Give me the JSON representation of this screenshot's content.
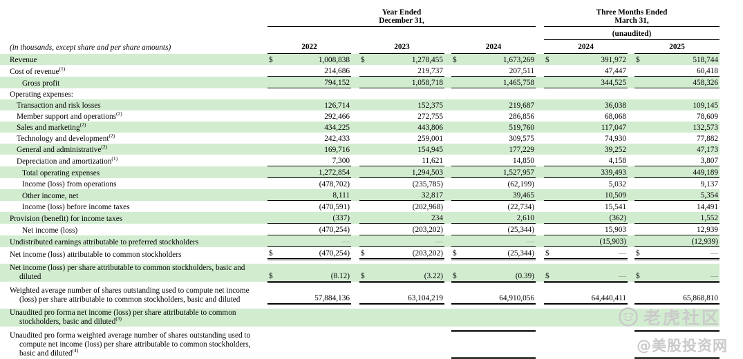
{
  "table": {
    "note": "(in thousands, except share and per share amounts)",
    "currency_symbol": "$",
    "header": {
      "annual_group": {
        "line1": "Year Ended",
        "line2": "December 31,"
      },
      "quarterly_group": {
        "line1": "Three Months Ended",
        "line2": "March 31,"
      },
      "unaudited_label": "(unaudited)",
      "year_columns": [
        "2022",
        "2023",
        "2024",
        "2024",
        "2025"
      ]
    },
    "colors": {
      "row_shade": "#d2ecd0",
      "rule": "#000000",
      "dash_gray": "#8a8a8a",
      "watermark_gray": "#c9c9c9"
    },
    "rows": [
      {
        "label": "Revenue",
        "indent": 0,
        "shaded": true,
        "dollar": true,
        "values": [
          "1,008,838",
          "1,278,455",
          "1,673,269",
          "391,972",
          "518,744"
        ]
      },
      {
        "label": "Cost of revenue",
        "sup": "(1)",
        "indent": 0,
        "shaded": false,
        "values": [
          "214,686",
          "219,737",
          "207,511",
          "47,447",
          "60,418"
        ],
        "rule": "single"
      },
      {
        "label": "Gross profit",
        "indent": 2,
        "shaded": true,
        "values": [
          "794,152",
          "1,058,718",
          "1,465,758",
          "344,525",
          "458,326"
        ],
        "rule": "single"
      },
      {
        "label": "Operating expenses:",
        "indent": 0,
        "shaded": false,
        "values": [
          "",
          "",
          "",
          "",
          ""
        ]
      },
      {
        "label": "Transaction and risk losses",
        "indent": 1,
        "shaded": true,
        "values": [
          "126,714",
          "152,375",
          "219,687",
          "36,038",
          "109,145"
        ]
      },
      {
        "label": "Member support and operations",
        "sup": "(2)",
        "indent": 1,
        "shaded": false,
        "values": [
          "292,466",
          "272,755",
          "286,856",
          "68,068",
          "78,609"
        ]
      },
      {
        "label": "Sales and marketing",
        "sup": "(2)",
        "indent": 1,
        "shaded": true,
        "values": [
          "434,225",
          "443,806",
          "519,760",
          "117,047",
          "132,573"
        ]
      },
      {
        "label": "Technology and development",
        "sup": "(2)",
        "indent": 1,
        "shaded": false,
        "values": [
          "242,433",
          "259,001",
          "309,575",
          "74,930",
          "77,882"
        ]
      },
      {
        "label": "General and administrative",
        "sup": "(2)",
        "indent": 1,
        "shaded": true,
        "values": [
          "169,716",
          "154,945",
          "177,229",
          "39,252",
          "47,173"
        ]
      },
      {
        "label": "Depreciation and amortization",
        "sup": "(1)",
        "indent": 1,
        "shaded": false,
        "values": [
          "7,300",
          "11,621",
          "14,850",
          "4,158",
          "3,807"
        ],
        "rule": "single"
      },
      {
        "label": "Total operating expenses",
        "indent": 2,
        "shaded": true,
        "values": [
          "1,272,854",
          "1,294,503",
          "1,527,957",
          "339,493",
          "449,189"
        ],
        "rule": "single"
      },
      {
        "label": "Income (loss) from operations",
        "indent": 2,
        "shaded": false,
        "values": [
          "(478,702)",
          "(235,785)",
          "(62,199)",
          "5,032",
          "9,137"
        ]
      },
      {
        "label": "Other income, net",
        "indent": 2,
        "shaded": true,
        "values": [
          "8,111",
          "32,817",
          "39,465",
          "10,509",
          "5,354"
        ],
        "rule": "single"
      },
      {
        "label": "Income (loss) before income taxes",
        "indent": 2,
        "shaded": false,
        "values": [
          "(470,591)",
          "(202,968)",
          "(22,734)",
          "15,541",
          "14,491"
        ]
      },
      {
        "label": "Provision (benefit) for income taxes",
        "indent": 0,
        "shaded": true,
        "values": [
          "(337)",
          "234",
          "2,610",
          "(362)",
          "1,552"
        ],
        "rule": "single"
      },
      {
        "label": "Net income (loss)",
        "indent": 2,
        "shaded": false,
        "values": [
          "(470,254)",
          "(203,202)",
          "(25,344)",
          "15,903",
          "12,939"
        ],
        "rule": "single"
      },
      {
        "label": "Undistributed earnings attributable to preferred stockholders",
        "indent": 0,
        "shaded": true,
        "values": [
          "—",
          "—",
          "—",
          "(15,903)",
          "(12,939)"
        ],
        "rule": "single"
      },
      {
        "label": "Net income (loss) attributable to common stockholders",
        "indent": 0,
        "shaded": false,
        "dollar": true,
        "values": [
          "(470,254)",
          "(203,202)",
          "(25,344)",
          "—",
          "—"
        ],
        "rule": "double",
        "spacer_after": true
      },
      {
        "label": "Net income (loss) per share attributable to common stockholders, basic and diluted",
        "indent": 0,
        "shaded": true,
        "dollar": true,
        "values": [
          "(8.12)",
          "(3.22)",
          "(0.39)",
          "—",
          "—"
        ],
        "rule": "double",
        "spacer_after": true
      },
      {
        "label": "Weighted average number of shares outstanding used to compute net income (loss) per share attributable to common stockholders, basic and diluted",
        "indent": 0,
        "shaded": false,
        "values": [
          "57,884,136",
          "63,104,219",
          "64,910,056",
          "64,440,411",
          "65,868,810"
        ],
        "rule": "double",
        "spacer_after": true
      },
      {
        "label": "Unaudited pro forma net income (loss) per share attributable to common stockholders, basic and diluted",
        "sup": "(3)",
        "indent": 0,
        "shaded": true,
        "values": [
          "",
          "",
          "",
          "",
          ""
        ],
        "rule_after": {
          "type": "double",
          "cols": [
            2,
            4
          ]
        }
      },
      {
        "label": "Unaudited pro forma weighted average number of shares outstanding used to compute net income (loss) per share attributable to common stockholders, basic and diluted",
        "sup": "(4)",
        "indent": 0,
        "shaded": false,
        "values": [
          "",
          "",
          "",
          "",
          ""
        ],
        "rule": "double",
        "rule_cols": [
          2,
          4
        ]
      }
    ]
  },
  "watermark": {
    "community_name": "老虎社区",
    "handle": "@美股投资网"
  }
}
